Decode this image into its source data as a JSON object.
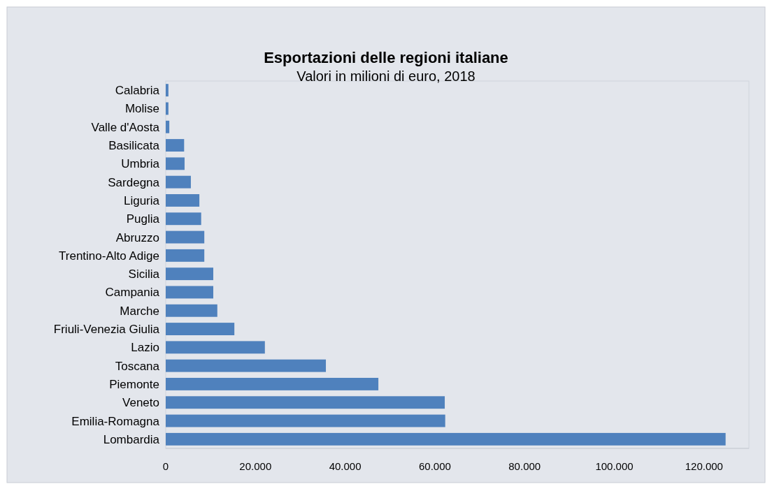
{
  "chart_data": {
    "type": "bar",
    "orientation": "horizontal",
    "title": "Esportazioni delle regioni italiane",
    "subtitle": "Valori in milioni di euro, 2018",
    "categories": [
      "Calabria",
      "Molise",
      "Valle d'Aosta",
      "Basilicata",
      "Umbria",
      "Sardegna",
      "Liguria",
      "Puglia",
      "Abruzzo",
      "Trentino-Alto Adige",
      "Sicilia",
      "Campania",
      "Marche",
      "Friuli-Venezia Giulia",
      "Lazio",
      "Toscana",
      "Piemonte",
      "Veneto",
      "Emilia-Romagna",
      "Lombardia"
    ],
    "values": [
      600,
      600,
      800,
      4100,
      4200,
      5600,
      7500,
      7900,
      8600,
      8600,
      10600,
      10600,
      11500,
      15300,
      22100,
      35700,
      47400,
      62200,
      62300,
      124800
    ],
    "color": "#4f81bd",
    "xlim": [
      0,
      130000
    ],
    "xticks": [
      {
        "value": 0,
        "label": "0"
      },
      {
        "value": 20000,
        "label": "20.000"
      },
      {
        "value": 40000,
        "label": "40.000"
      },
      {
        "value": 60000,
        "label": "60.000"
      },
      {
        "value": 80000,
        "label": "80.000"
      },
      {
        "value": 100000,
        "label": "100.000"
      },
      {
        "value": 120000,
        "label": "120.000"
      }
    ],
    "grid": false
  }
}
